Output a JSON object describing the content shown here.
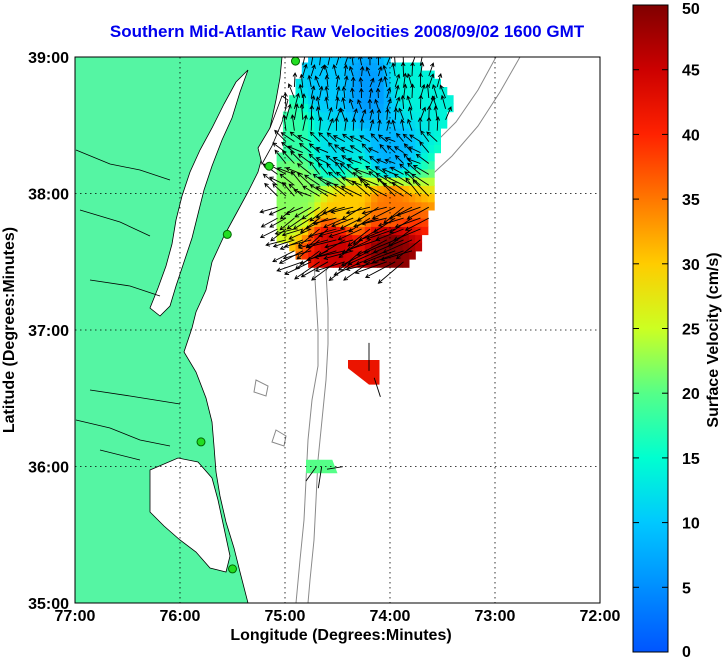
{
  "chart_data": {
    "type": "heatmap",
    "title": "Southern Mid-Atlantic Raw Velocities 2008/09/02 1600 GMT",
    "xlabel": "Longitude (Degrees:Minutes)",
    "ylabel": "Latitude (Degrees:Minutes)",
    "x_ticks": [
      "77:00",
      "76:00",
      "75:00",
      "74:00",
      "73:00",
      "72:00"
    ],
    "y_ticks": [
      "39:00",
      "38:00",
      "37:00",
      "36:00",
      "35:00"
    ],
    "xlim": [
      -77,
      -72
    ],
    "ylim": [
      35,
      39
    ],
    "grid": true,
    "colorbar": {
      "label": "Surface Velocity (cm/s)",
      "min": 0,
      "max": 50,
      "ticks": [
        "0",
        "5",
        "10",
        "15",
        "20",
        "25",
        "30",
        "35",
        "40",
        "45",
        "50"
      ]
    },
    "colors": {
      "land": "#55f5a3",
      "title": "#0000ee"
    },
    "velocity_regions": [
      {
        "lon": -74.6,
        "lat": 38.8,
        "speed": 10
      },
      {
        "lon": -74.2,
        "lat": 38.75,
        "speed": 6
      },
      {
        "lon": -73.8,
        "lat": 38.8,
        "speed": 14
      },
      {
        "lon": -74.5,
        "lat": 38.3,
        "speed": 12
      },
      {
        "lon": -74.0,
        "lat": 38.3,
        "speed": 8
      },
      {
        "lon": -75.0,
        "lat": 38.5,
        "speed": 18
      },
      {
        "lon": -74.9,
        "lat": 38.0,
        "speed": 22
      },
      {
        "lon": -74.4,
        "lat": 37.9,
        "speed": 30
      },
      {
        "lon": -74.0,
        "lat": 37.9,
        "speed": 35
      },
      {
        "lon": -74.5,
        "lat": 37.6,
        "speed": 45
      },
      {
        "lon": -74.0,
        "lat": 37.6,
        "speed": 50
      },
      {
        "lon": -74.2,
        "lat": 36.7,
        "speed": 42
      },
      {
        "lon": -74.7,
        "lat": 36.0,
        "speed": 20
      }
    ],
    "stations": [
      {
        "lon": -74.9,
        "lat": 38.97
      },
      {
        "lon": -75.15,
        "lat": 38.2
      },
      {
        "lon": -75.55,
        "lat": 37.7
      },
      {
        "lon": -75.8,
        "lat": 36.18
      },
      {
        "lon": -75.5,
        "lat": 35.25
      }
    ]
  }
}
